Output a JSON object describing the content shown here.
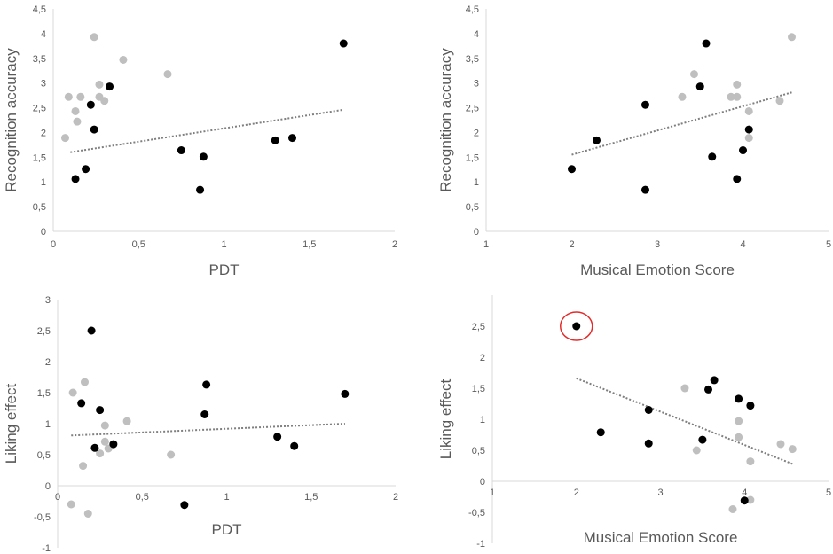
{
  "chart_data": [
    {
      "type": "scatter",
      "xlabel": "PDT",
      "ylabel": "Recognition accuracy",
      "xlim": [
        0,
        2
      ],
      "ylim": [
        0,
        4.5
      ],
      "xticks": [
        "0",
        "0,5",
        "1",
        "1,5",
        "2"
      ],
      "yticks": [
        "0",
        "0,5",
        "1",
        "1,5",
        "2",
        "2,5",
        "3",
        "3,5",
        "4",
        "4,5"
      ],
      "grid": false,
      "colors": {
        "black": "#000000",
        "gray": "#bfbfbf",
        "trend": "#7f7f7f"
      },
      "series": [
        {
          "color": "gray",
          "points": [
            [
              0.07,
              1.89
            ],
            [
              0.09,
              2.72
            ],
            [
              0.13,
              2.43
            ],
            [
              0.14,
              2.22
            ],
            [
              0.16,
              2.72
            ],
            [
              0.24,
              3.93
            ],
            [
              0.27,
              2.97
            ],
            [
              0.27,
              2.72
            ],
            [
              0.3,
              2.64
            ],
            [
              0.41,
              3.47
            ],
            [
              0.67,
              3.18
            ]
          ]
        },
        {
          "color": "black",
          "points": [
            [
              0.13,
              1.06
            ],
            [
              0.19,
              1.26
            ],
            [
              0.22,
              2.56
            ],
            [
              0.24,
              2.06
            ],
            [
              0.33,
              2.93
            ],
            [
              0.75,
              1.64
            ],
            [
              0.86,
              0.84
            ],
            [
              0.88,
              1.51
            ],
            [
              1.3,
              1.84
            ],
            [
              1.4,
              1.89
            ],
            [
              1.7,
              3.8
            ]
          ]
        }
      ],
      "trendline": {
        "x": [
          0.1,
          1.7
        ],
        "y": [
          1.6,
          2.46
        ]
      }
    },
    {
      "type": "scatter",
      "xlabel": "Musical Emotion Score",
      "ylabel": "Recognition accuracy",
      "xlim": [
        1,
        5
      ],
      "ylim": [
        0,
        4.5
      ],
      "xticks": [
        "1",
        "2",
        "3",
        "4",
        "5"
      ],
      "yticks": [
        "0",
        "0,5",
        "1",
        "1,5",
        "2",
        "2,5",
        "3",
        "3,5",
        "4",
        "4,5"
      ],
      "grid": false,
      "colors": {
        "black": "#000000",
        "gray": "#bfbfbf",
        "trend": "#7f7f7f"
      },
      "series": [
        {
          "color": "gray",
          "points": [
            [
              3.29,
              2.72
            ],
            [
              3.43,
              3.18
            ],
            [
              3.86,
              2.72
            ],
            [
              3.93,
              2.97
            ],
            [
              3.93,
              2.72
            ],
            [
              4.07,
              2.43
            ],
            [
              4.07,
              1.89
            ],
            [
              4.43,
              2.64
            ],
            [
              4.57,
              3.93
            ]
          ]
        },
        {
          "color": "black",
          "points": [
            [
              2.0,
              1.26
            ],
            [
              2.29,
              1.84
            ],
            [
              2.86,
              2.56
            ],
            [
              2.86,
              0.84
            ],
            [
              3.5,
              2.93
            ],
            [
              3.57,
              3.8
            ],
            [
              3.64,
              1.51
            ],
            [
              3.93,
              1.06
            ],
            [
              4.0,
              1.64
            ],
            [
              4.07,
              2.06
            ]
          ]
        }
      ],
      "trendline": {
        "x": [
          2.0,
          4.57
        ],
        "y": [
          1.55,
          2.81
        ]
      }
    },
    {
      "type": "scatter",
      "xlabel": "PDT",
      "ylabel": "Liking effect",
      "xlim": [
        0,
        2
      ],
      "ylim": [
        -1,
        3
      ],
      "xticks": [
        "0",
        "0,5",
        "1",
        "1,5",
        "2"
      ],
      "yticks": [
        "-1",
        "-0,5",
        "0",
        "0,5",
        "1",
        "1,5",
        "2",
        "2,5",
        "3"
      ],
      "grid": false,
      "colors": {
        "black": "#000000",
        "gray": "#bfbfbf",
        "trend": "#7f7f7f"
      },
      "series": [
        {
          "color": "gray",
          "points": [
            [
              0.08,
              -0.3
            ],
            [
              0.09,
              1.5
            ],
            [
              0.15,
              0.32
            ],
            [
              0.16,
              1.67
            ],
            [
              0.18,
              -0.45
            ],
            [
              0.25,
              0.52
            ],
            [
              0.28,
              0.97
            ],
            [
              0.28,
              0.71
            ],
            [
              0.3,
              0.6
            ],
            [
              0.41,
              1.04
            ],
            [
              0.67,
              0.5
            ]
          ]
        },
        {
          "color": "black",
          "points": [
            [
              0.14,
              1.33
            ],
            [
              0.2,
              2.5
            ],
            [
              0.22,
              0.61
            ],
            [
              0.25,
              1.22
            ],
            [
              0.33,
              0.67
            ],
            [
              0.75,
              -0.31
            ],
            [
              0.87,
              1.15
            ],
            [
              0.88,
              1.63
            ],
            [
              1.3,
              0.79
            ],
            [
              1.4,
              0.64
            ],
            [
              1.7,
              1.48
            ]
          ]
        }
      ],
      "trendline": {
        "x": [
          0.08,
          1.7
        ],
        "y": [
          0.81,
          1.0
        ]
      }
    },
    {
      "type": "scatter",
      "xlabel": "Musical Emotion Score",
      "ylabel": "Liking effect",
      "xlim": [
        1,
        5
      ],
      "ylim": [
        -1,
        3
      ],
      "xticks": [
        "1",
        "2",
        "3",
        "4",
        "5"
      ],
      "yticks": [
        "-1",
        "-0,5",
        "0",
        "0,5",
        "1",
        "1,5",
        "2",
        "2,5"
      ],
      "grid": false,
      "colors": {
        "black": "#000000",
        "gray": "#bfbfbf",
        "trend": "#7f7f7f",
        "highlight": "#e32b2b"
      },
      "series": [
        {
          "color": "gray",
          "points": [
            [
              3.29,
              1.5
            ],
            [
              3.43,
              0.5
            ],
            [
              3.86,
              -0.45
            ],
            [
              3.93,
              0.97
            ],
            [
              3.93,
              0.71
            ],
            [
              4.07,
              0.32
            ],
            [
              4.07,
              -0.3
            ],
            [
              4.43,
              0.6
            ],
            [
              4.57,
              0.52
            ]
          ]
        },
        {
          "color": "black",
          "points": [
            [
              2.0,
              2.5
            ],
            [
              2.29,
              0.79
            ],
            [
              2.86,
              1.15
            ],
            [
              2.86,
              0.61
            ],
            [
              3.5,
              0.67
            ],
            [
              3.57,
              1.48
            ],
            [
              3.64,
              1.63
            ],
            [
              3.93,
              1.33
            ],
            [
              4.0,
              -0.31
            ],
            [
              4.07,
              1.22
            ]
          ]
        }
      ],
      "trendline": {
        "x": [
          2.0,
          4.57
        ],
        "y": [
          1.66,
          0.28
        ]
      },
      "highlight_point": [
        2.0,
        2.5
      ]
    }
  ]
}
